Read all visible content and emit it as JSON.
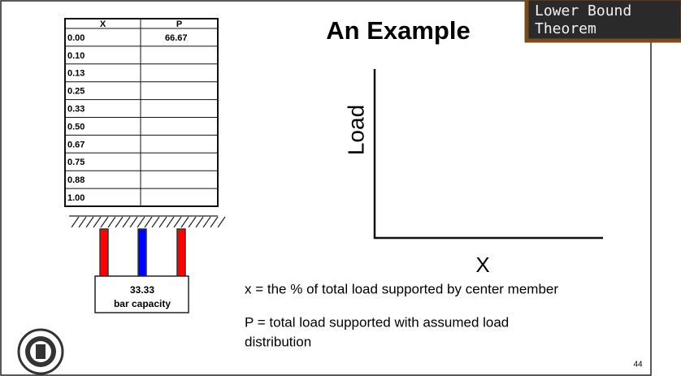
{
  "slide": {
    "title": "An Example",
    "badge": [
      "Lower Bound",
      "Theorem"
    ],
    "table": {
      "header": [
        "X",
        "P"
      ],
      "rows": [
        [
          "0.00",
          "66.67"
        ],
        [
          "0.10"
        ],
        [
          "0.13"
        ],
        [
          "0.25"
        ],
        [
          "0.33"
        ],
        [
          "0.50"
        ],
        [
          "0.67"
        ],
        [
          "0.75"
        ],
        [
          "0.88"
        ],
        [
          "1.00"
        ]
      ]
    },
    "capacity_box": [
      "33.33",
      "bar capacity"
    ],
    "graph": {
      "y_label": "Load",
      "x_label": "X"
    },
    "definitions": [
      "x = the % of total load supported by center member",
      "P = total load supported with assumed load",
      "distribution"
    ],
    "page_number": "44"
  }
}
